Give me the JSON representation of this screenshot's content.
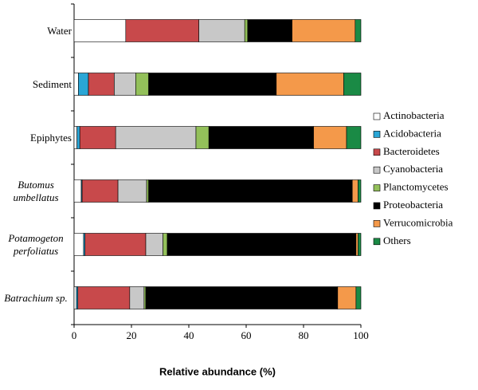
{
  "chart_data": {
    "type": "stacked-bar-horizontal",
    "x_label": "Relative abundance (%)",
    "categories": [
      "Water",
      "Sediment",
      "Epiphytes",
      "Butomus umbellatus",
      "Potamogeton perfoliatus",
      "Batrachium sp."
    ],
    "series": [
      {
        "name": "Actinobacteria",
        "color": "#ffffff",
        "values": [
          18,
          1.5,
          1,
          2.5,
          3.3,
          0.8
        ]
      },
      {
        "name": "Acidobacteria",
        "color": "#2aa6d6",
        "values": [
          0,
          3.5,
          1,
          0.3,
          0.5,
          0.5
        ]
      },
      {
        "name": "Bacteroidetes",
        "color": "#c8494b",
        "values": [
          25.5,
          9,
          12.5,
          12.5,
          21.2,
          18.1
        ]
      },
      {
        "name": "Cyanobacteria",
        "color": "#c8c8c8",
        "values": [
          16,
          7.5,
          28,
          10,
          6,
          5
        ]
      },
      {
        "name": "Planctomycetes",
        "color": "#93c05a",
        "values": [
          1,
          4.5,
          4.5,
          0.7,
          1.5,
          0.6
        ]
      },
      {
        "name": "Proteobacteria",
        "color": "#000000",
        "values": [
          15.5,
          44.5,
          36.5,
          71,
          65.8,
          66.9
        ]
      },
      {
        "name": "Verrucomicrobia",
        "color": "#f4994a",
        "values": [
          22,
          23.5,
          11.5,
          2,
          0.7,
          6.4
        ]
      },
      {
        "name": "Others",
        "color": "#1a8a45",
        "values": [
          2,
          6,
          5,
          1,
          1,
          1.7
        ]
      }
    ],
    "xlim": [
      0,
      100
    ],
    "xticks": [
      0,
      20,
      40,
      60,
      80,
      100
    ]
  }
}
